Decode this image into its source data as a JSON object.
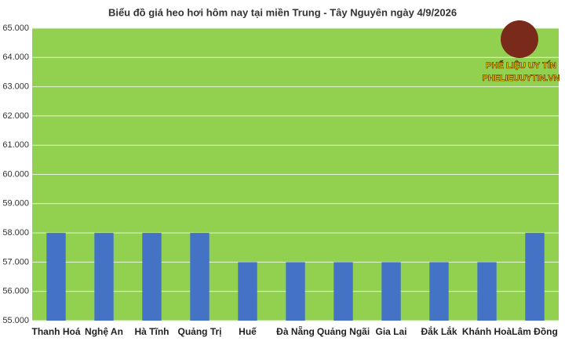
{
  "chart_data": {
    "type": "bar",
    "title": "Biểu đồ giá heo hơi hôm nay tại miền Trung - Tây Nguyên ngày 4/9/2026",
    "categories": [
      "Thanh Hoá",
      "Nghệ An",
      "Hà Tĩnh",
      "Quảng Trị",
      "Huế",
      "Đà Nẵng",
      "Quảng Ngãi",
      "Gia Lai",
      "Đắk Lắk",
      "Khánh Hoà",
      "Lâm Đồng"
    ],
    "values": [
      58000,
      58000,
      58000,
      58000,
      57000,
      57000,
      57000,
      57000,
      57000,
      57000,
      58000
    ],
    "color": "#4472c4",
    "plot_background": "#92d050",
    "ylim": [
      55000,
      65000
    ],
    "yticks": [
      {
        "value": 55000,
        "label": "55.000"
      },
      {
        "value": 56000,
        "label": "56.000"
      },
      {
        "value": 57000,
        "label": "57.000"
      },
      {
        "value": 58000,
        "label": "58.000"
      },
      {
        "value": 59000,
        "label": "59.000"
      },
      {
        "value": 60000,
        "label": "60.000"
      },
      {
        "value": 61000,
        "label": "61.000"
      },
      {
        "value": 62000,
        "label": "62.000"
      },
      {
        "value": 63000,
        "label": "63.000"
      },
      {
        "value": 64000,
        "label": "64.000"
      },
      {
        "value": 65000,
        "label": "65.000"
      }
    ],
    "grid": true
  },
  "logo": {
    "line1": "PHẾ LIỆU UY TÍN",
    "line2": "PHELIEUUYTIN.VN"
  }
}
